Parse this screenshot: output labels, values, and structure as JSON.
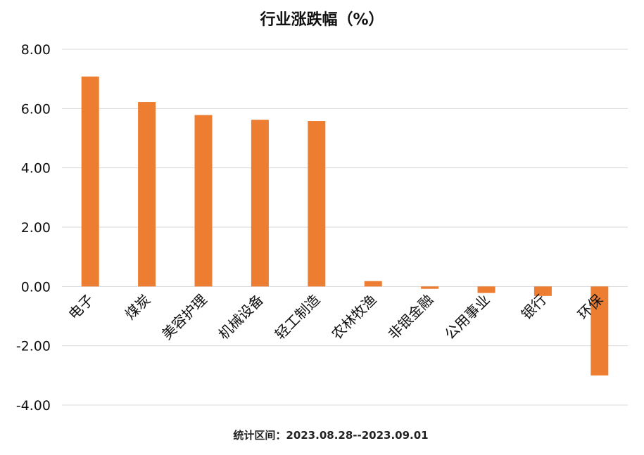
{
  "chart_data": {
    "type": "bar",
    "title": "行业涨跌幅（%）",
    "footnote": "统计区间：2023.08.28--2023.09.01",
    "categories": [
      "电子",
      "煤炭",
      "美容护理",
      "机械设备",
      "轻工制造",
      "农林牧渔",
      "非银金融",
      "公用事业",
      "银行",
      "环保"
    ],
    "values": [
      7.08,
      6.22,
      5.78,
      5.62,
      5.58,
      0.18,
      -0.08,
      -0.22,
      -0.32,
      -3.0
    ],
    "ylim": [
      -4,
      8
    ],
    "yticks": [
      "-4.00",
      "-2.00",
      "0.00",
      "2.00",
      "4.00",
      "6.00",
      "8.00"
    ],
    "xlabel": "",
    "ylabel": "",
    "bar_color": "#ED7D31",
    "grid": true
  }
}
